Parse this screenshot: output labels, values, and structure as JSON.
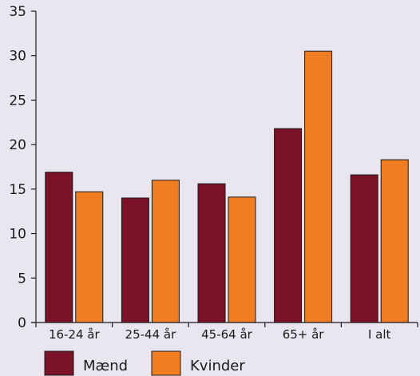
{
  "chart_data": {
    "type": "bar",
    "categories": [
      "16-24 år",
      "25-44 år",
      "45-64 år",
      "65+ år",
      "I alt"
    ],
    "series": [
      {
        "name": "Mænd",
        "values": [
          16.9,
          14.0,
          15.6,
          21.8,
          16.6
        ]
      },
      {
        "name": "Kvinder",
        "values": [
          14.7,
          16.0,
          14.1,
          30.5,
          18.3
        ]
      }
    ],
    "ylim": [
      0,
      35
    ],
    "yticks": [
      0,
      5,
      10,
      15,
      20,
      25,
      30,
      35
    ],
    "grid": false,
    "legend_position": "bottom-left",
    "colors": {
      "Mænd": "#7B1328",
      "Kvinder": "#F07D22",
      "background": "#E9E6EF",
      "axis": "#1a1a1a"
    }
  }
}
